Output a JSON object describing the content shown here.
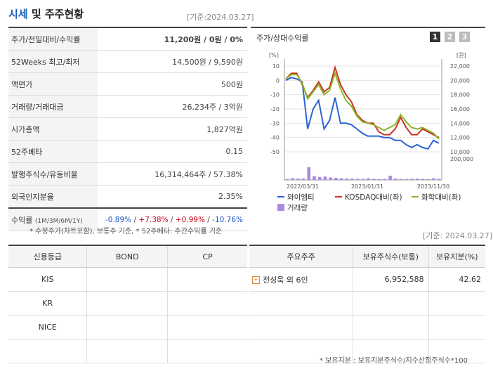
{
  "header": {
    "title_highlight": "시세",
    "title_rest": " 및 주주현황",
    "base_date": "[기준:2024.03.27]"
  },
  "quote_rows": [
    {
      "label": "주가/전일대비/수익률",
      "value": "11,200원 / 0원 / 0%"
    },
    {
      "label": "52Weeks 최고/최저",
      "value": "14,500원 / 9,590원"
    },
    {
      "label": "액면가",
      "value": "500원"
    },
    {
      "label": "거래량/거래대금",
      "value": "26,234주 / 3억원"
    },
    {
      "label": "시가총액",
      "value": "1,827억원"
    },
    {
      "label": "52주베타",
      "value": "0.15"
    },
    {
      "label": "발행주식수/유동비율",
      "value": "16,314,464주 / 57.38%"
    },
    {
      "label": "외국인지분율",
      "value": "2.35%"
    }
  ],
  "returns": {
    "label": "수익률",
    "label_sub": "(1M/3M/6M/1Y)",
    "v1": "-0.89%",
    "sep1": "/ ",
    "v2": "+7.38%",
    "sep2": "/ ",
    "v3": "+0.99%",
    "sep3": "/ ",
    "v4": "-10.76%"
  },
  "quote_note": "* 수정주가(차트포함), 보통주 기준, * 52주베타: 주간수익률 기준",
  "chart_panel": {
    "title": "주가/상대수익률",
    "pages": [
      "1",
      "2",
      "3"
    ],
    "colors": {
      "page_active": "#333333",
      "page_inactive": "#bbbbbb"
    }
  },
  "chart_data": {
    "type": "line",
    "left_axis_unit": "[%]",
    "right_axis_unit": "[원]",
    "left_ticks": [
      "10",
      "0",
      "-10",
      "-20",
      "-30",
      "-40",
      "-50"
    ],
    "right_ticks": [
      "22,000",
      "20,000",
      "18,000",
      "16,000",
      "14,000",
      "12,000",
      "10,000"
    ],
    "volume_tick": "200,000",
    "x_tick_labels": [
      "2022/03/31",
      "2023/01/31",
      "2023/11/30"
    ],
    "ylim_left": [
      -50,
      10
    ],
    "series": [
      {
        "name": "와이엠티",
        "color": "#2b63d4",
        "values": [
          0,
          2,
          1,
          -1,
          -34,
          -20,
          -14,
          -34,
          -28,
          -12,
          -30,
          -30,
          -31,
          -34,
          -37,
          -39,
          -39,
          -39,
          -40,
          -40,
          -42,
          -42,
          -45,
          -47,
          -45,
          -47,
          -48,
          -42,
          -44
        ]
      },
      {
        "name": "KOSDAQ대비(좌)",
        "color": "#c8371f",
        "values": [
          1,
          5,
          5,
          -3,
          -12,
          -7,
          -1,
          -8,
          -5,
          9,
          -3,
          -10,
          -15,
          -24,
          -28,
          -30,
          -30,
          -36,
          -38,
          -38,
          -34,
          -26,
          -33,
          -38,
          -38,
          -34,
          -36,
          -38,
          -40
        ]
      },
      {
        "name": "화학대비(좌)",
        "color": "#8ab62c",
        "values": [
          1,
          4,
          4,
          -2,
          -13,
          -8,
          -3,
          -10,
          -7,
          5,
          -6,
          -14,
          -18,
          -25,
          -29,
          -30,
          -31,
          -33,
          -35,
          -33,
          -31,
          -24,
          -29,
          -33,
          -34,
          -33,
          -35,
          -37,
          -41
        ]
      }
    ],
    "volume": {
      "name": "거래량",
      "color": "#a88be0",
      "values": [
        0.04,
        0.08,
        0.06,
        0.07,
        0.6,
        0.18,
        0.14,
        0.16,
        0.12,
        0.1,
        0.08,
        0.07,
        0.06,
        0.05,
        0.05,
        0.08,
        0.05,
        0.04,
        0.05,
        0.2,
        0.06,
        0.05,
        0.04,
        0.05,
        0.06,
        0.05,
        0.04,
        0.08,
        0.05
      ]
    },
    "legend_placement": "bottom"
  },
  "note_right_date": "[기준: 2024.03.27]",
  "credit_table": {
    "headers": [
      "신용등급",
      "BOND",
      "CP"
    ],
    "rows": [
      [
        "KIS",
        "",
        ""
      ],
      [
        "KR",
        "",
        ""
      ],
      [
        "NICE",
        "",
        ""
      ],
      [
        "",
        "",
        ""
      ]
    ]
  },
  "holder_table": {
    "headers": [
      "주요주주",
      "보유주식수(보통)",
      "보유지분(%)"
    ],
    "rows": [
      [
        "전성욱 외 6인",
        "6,952,588",
        "42.62"
      ],
      [
        "",
        "",
        ""
      ],
      [
        "",
        "",
        ""
      ],
      [
        "",
        "",
        ""
      ]
    ],
    "expand_icon": "plus-icon"
  },
  "holder_note": "* 보유지분 : 보유지분주식수/지수산정주식수*100"
}
